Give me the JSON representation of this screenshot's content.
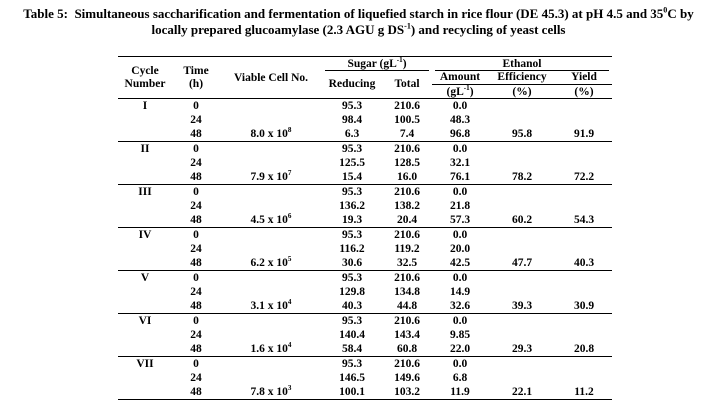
{
  "title": {
    "line1": [
      {
        "t": "Table 5:  Simultaneous saccharification and fermentation of liquefied starch in rice flour (DE 45.3) at pH 4.5 and 35"
      },
      {
        "t": "0",
        "sup": true
      },
      {
        "t": "C by"
      }
    ],
    "line2": [
      {
        "t": "locally prepared glucoamylase (2.3 AGU g DS"
      },
      {
        "t": "-1",
        "sup": true
      },
      {
        "t": ") and recycling of yeast cells"
      }
    ]
  },
  "table": {
    "header": {
      "cycle": [
        "Cycle",
        "Number"
      ],
      "time": [
        "Time",
        "(h)"
      ],
      "viable": "Viable Cell No.",
      "sugar_group": [
        {
          "t": "Sugar (gL"
        },
        {
          "t": "-1",
          "sup": true
        },
        {
          "t": ")"
        }
      ],
      "reducing": "Reducing",
      "total": "Total",
      "ethanol_group": "Ethanol",
      "amount": "Amount",
      "amount_unit": [
        {
          "t": "(gL"
        },
        {
          "t": "-1",
          "sup": true
        },
        {
          "t": ")"
        }
      ],
      "efficiency": "Efficiency",
      "efficiency_unit": "(%)",
      "yield": "Yield",
      "yield_unit": "(%)"
    },
    "cycles": [
      {
        "cycle": "I",
        "rows": [
          {
            "time": "0",
            "viable": "",
            "reducing": "95.3",
            "total": "210.6",
            "amount": "0.0",
            "efficiency": "",
            "yield": ""
          },
          {
            "time": "24",
            "viable": "",
            "reducing": "98.4",
            "total": "100.5",
            "amount": "48.3",
            "efficiency": "",
            "yield": ""
          },
          {
            "time": "48",
            "viable": [
              {
                "t": "8.0 x 10"
              },
              {
                "t": "8",
                "sup": true
              }
            ],
            "reducing": "6.3",
            "total": "7.4",
            "amount": "96.8",
            "efficiency": "95.8",
            "yield": "91.9"
          }
        ]
      },
      {
        "cycle": "II",
        "rows": [
          {
            "time": "0",
            "viable": "",
            "reducing": "95.3",
            "total": "210.6",
            "amount": "0.0",
            "efficiency": "",
            "yield": ""
          },
          {
            "time": "24",
            "viable": "",
            "reducing": "125.5",
            "total": "128.5",
            "amount": "32.1",
            "efficiency": "",
            "yield": ""
          },
          {
            "time": "48",
            "viable": [
              {
                "t": "7.9 x 10"
              },
              {
                "t": "7",
                "sup": true
              }
            ],
            "reducing": "15.4",
            "total": "16.0",
            "amount": "76.1",
            "efficiency": "78.2",
            "yield": "72.2"
          }
        ]
      },
      {
        "cycle": "III",
        "rows": [
          {
            "time": "0",
            "viable": "",
            "reducing": "95.3",
            "total": "210.6",
            "amount": "0.0",
            "efficiency": "",
            "yield": ""
          },
          {
            "time": "24",
            "viable": "",
            "reducing": "136.2",
            "total": "138.2",
            "amount": "21.8",
            "efficiency": "",
            "yield": ""
          },
          {
            "time": "48",
            "viable": [
              {
                "t": "4.5 x 10"
              },
              {
                "t": "6",
                "sup": true
              }
            ],
            "reducing": "19.3",
            "total": "20.4",
            "amount": "57.3",
            "efficiency": "60.2",
            "yield": "54.3"
          }
        ]
      },
      {
        "cycle": "IV",
        "rows": [
          {
            "time": "0",
            "viable": "",
            "reducing": "95.3",
            "total": "210.6",
            "amount": "0.0",
            "efficiency": "",
            "yield": ""
          },
          {
            "time": "24",
            "viable": "",
            "reducing": "116.2",
            "total": "119.2",
            "amount": "20.0",
            "efficiency": "",
            "yield": ""
          },
          {
            "time": "48",
            "viable": [
              {
                "t": "6.2 x 10"
              },
              {
                "t": "5",
                "sup": true
              }
            ],
            "reducing": "30.6",
            "total": "32.5",
            "amount": "42.5",
            "efficiency": "47.7",
            "yield": "40.3"
          }
        ]
      },
      {
        "cycle": "V",
        "rows": [
          {
            "time": "0",
            "viable": "",
            "reducing": "95.3",
            "total": "210.6",
            "amount": "0.0",
            "efficiency": "",
            "yield": ""
          },
          {
            "time": "24",
            "viable": "",
            "reducing": "129.8",
            "total": "134.8",
            "amount": "14.9",
            "efficiency": "",
            "yield": ""
          },
          {
            "time": "48",
            "viable": [
              {
                "t": "3.1 x 10"
              },
              {
                "t": "4",
                "sup": true
              }
            ],
            "reducing": "40.3",
            "total": "44.8",
            "amount": "32.6",
            "efficiency": "39.3",
            "yield": "30.9"
          }
        ]
      },
      {
        "cycle": "VI",
        "rows": [
          {
            "time": "0",
            "viable": "",
            "reducing": "95.3",
            "total": "210.6",
            "amount": "0.0",
            "efficiency": "",
            "yield": ""
          },
          {
            "time": "24",
            "viable": "",
            "reducing": "140.4",
            "total": "143.4",
            "amount": "9.85",
            "efficiency": "",
            "yield": ""
          },
          {
            "time": "48",
            "viable": [
              {
                "t": "1.6 x 10"
              },
              {
                "t": "4",
                "sup": true
              }
            ],
            "reducing": "58.4",
            "total": "60.8",
            "amount": "22.0",
            "efficiency": "29.3",
            "yield": "20.8"
          }
        ]
      },
      {
        "cycle": "VII",
        "rows": [
          {
            "time": "0",
            "viable": "",
            "reducing": "95.3",
            "total": "210.6",
            "amount": "0.0",
            "efficiency": "",
            "yield": ""
          },
          {
            "time": "24",
            "viable": "",
            "reducing": "146.5",
            "total": "149.6",
            "amount": "6.8",
            "efficiency": "",
            "yield": ""
          },
          {
            "time": "48",
            "viable": [
              {
                "t": "7.8 x 10"
              },
              {
                "t": "3",
                "sup": true
              }
            ],
            "reducing": "100.1",
            "total": "103.2",
            "amount": "11.9",
            "efficiency": "22.1",
            "yield": "11.2"
          }
        ]
      }
    ]
  }
}
